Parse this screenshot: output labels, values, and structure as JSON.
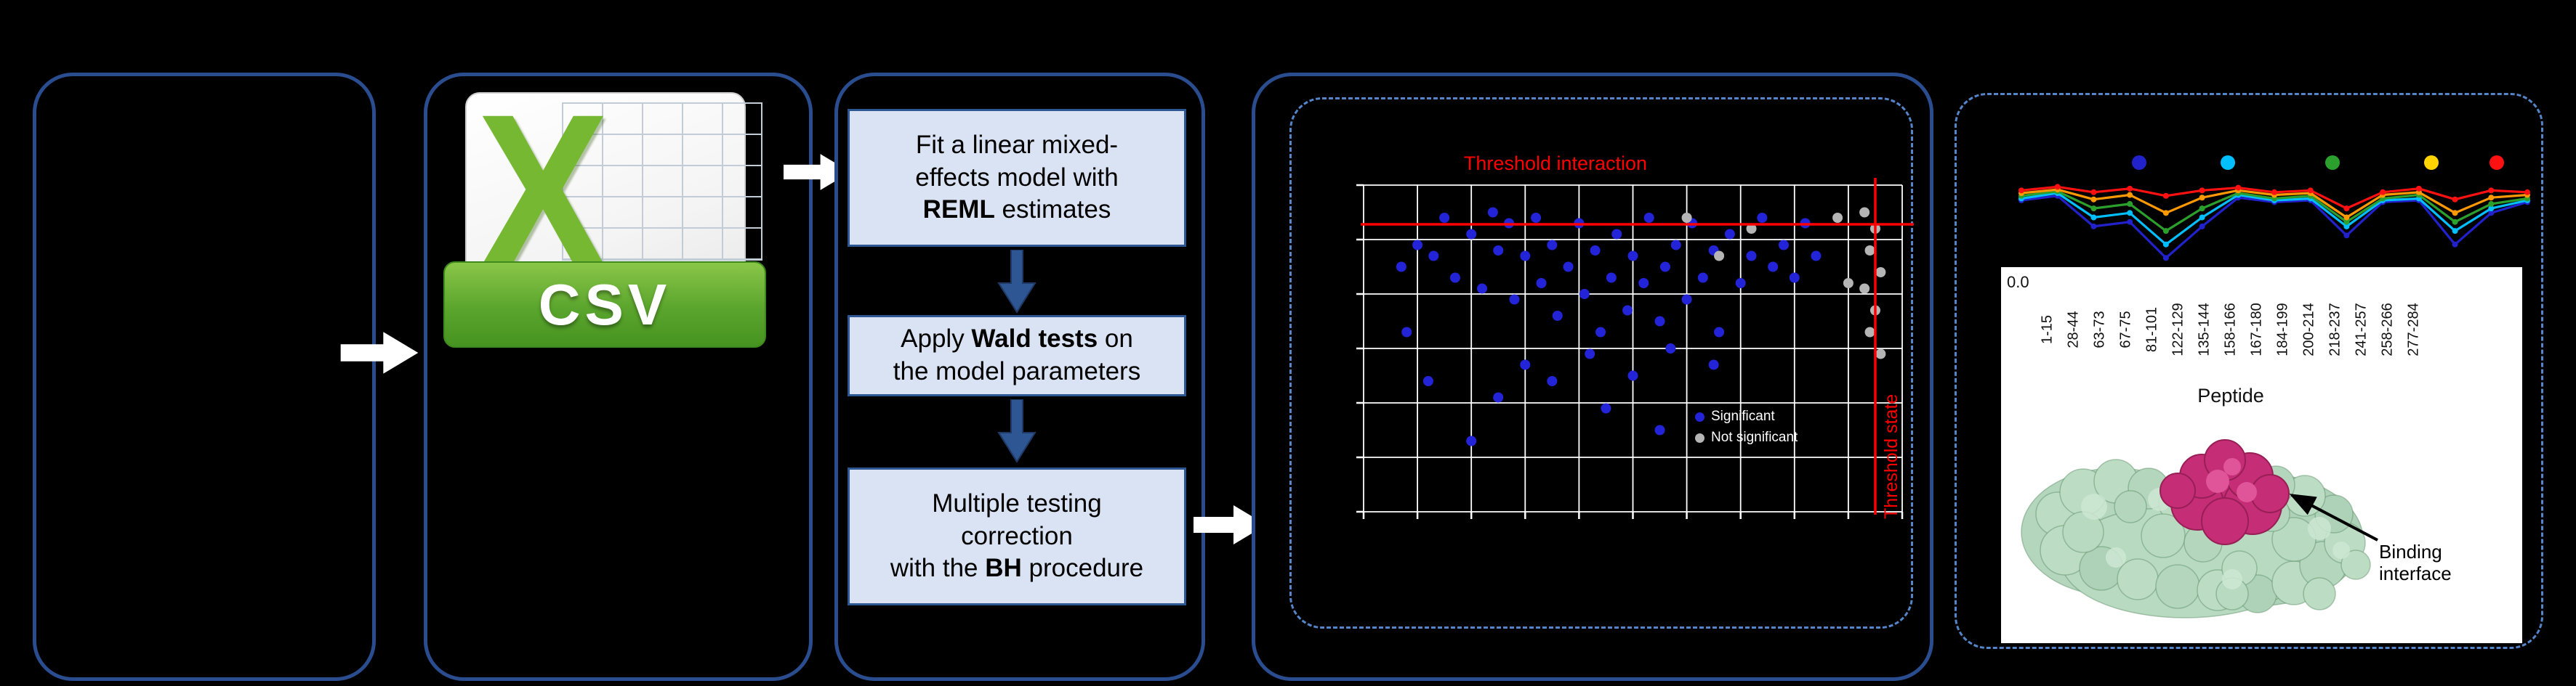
{
  "figure": {
    "background": "#000000",
    "panel_border_color": "#2a4d8f",
    "dashed_border_color": "#5585c9",
    "step_box_fill": "#dae3f3",
    "step_box_border": "#2e5693"
  },
  "panel_csv": {
    "file_type_label": "CSV",
    "excel_letter": "X"
  },
  "panel_steps": {
    "steps": [
      {
        "pre": "Fit a linear mixed-\neffects model with\n",
        "bold": "REML",
        "post": " estimates"
      },
      {
        "pre": "Apply ",
        "bold": "Wald tests",
        "post": " on\nthe model parameters"
      },
      {
        "pre": "Multiple testing\ncorrection\nwith the ",
        "bold": "BH",
        "post": " procedure"
      }
    ]
  },
  "panel_results": {
    "y_tick": "0.0",
    "x_axis_title": "Peptide",
    "binding_label": "Binding\ninterface"
  },
  "chart_data": [
    {
      "id": "pvalue-scatter",
      "type": "scatter",
      "x_range": [
        0,
        10
      ],
      "y_range": [
        0,
        6
      ],
      "grid_step_x": 1,
      "grid_step_y": 1,
      "grid": true,
      "grid_color": "#ffffff",
      "threshold_color": "#ff0000",
      "threshold_h_label": "Threshold interaction",
      "threshold_v_label": "Threshold state",
      "threshold_h_y": 5.28,
      "threshold_v_x": 9.5,
      "series": [
        {
          "name": "significant",
          "color": "#2323d7",
          "points": [
            [
              0.7,
              4.5
            ],
            [
              1.0,
              4.9
            ],
            [
              1.3,
              4.7
            ],
            [
              1.5,
              5.4
            ],
            [
              1.7,
              4.3
            ],
            [
              2.0,
              5.1
            ],
            [
              2.2,
              4.1
            ],
            [
              2.4,
              5.5
            ],
            [
              2.5,
              4.8
            ],
            [
              2.7,
              5.3
            ],
            [
              2.8,
              3.9
            ],
            [
              3.0,
              4.7
            ],
            [
              3.2,
              5.4
            ],
            [
              3.3,
              4.2
            ],
            [
              3.5,
              4.9
            ],
            [
              3.6,
              3.6
            ],
            [
              3.8,
              4.5
            ],
            [
              4.0,
              5.3
            ],
            [
              4.1,
              4.0
            ],
            [
              4.3,
              4.8
            ],
            [
              4.4,
              3.3
            ],
            [
              4.6,
              4.3
            ],
            [
              4.7,
              5.1
            ],
            [
              4.9,
              3.7
            ],
            [
              5.0,
              4.7
            ],
            [
              5.2,
              4.2
            ],
            [
              5.3,
              5.4
            ],
            [
              5.5,
              3.5
            ],
            [
              5.6,
              4.5
            ],
            [
              5.8,
              4.9
            ],
            [
              6.0,
              3.9
            ],
            [
              6.1,
              5.3
            ],
            [
              6.3,
              4.3
            ],
            [
              6.5,
              4.8
            ],
            [
              6.6,
              3.3
            ],
            [
              6.8,
              5.1
            ],
            [
              7.0,
              4.2
            ],
            [
              7.2,
              4.7
            ],
            [
              7.4,
              5.4
            ],
            [
              7.6,
              4.5
            ],
            [
              7.8,
              4.9
            ],
            [
              8.0,
              4.3
            ],
            [
              8.2,
              5.3
            ],
            [
              8.4,
              4.7
            ],
            [
              3.0,
              2.7
            ],
            [
              3.5,
              2.4
            ],
            [
              4.2,
              2.9
            ],
            [
              5.0,
              2.5
            ],
            [
              5.7,
              3.0
            ],
            [
              2.5,
              2.1
            ],
            [
              4.5,
              1.9
            ],
            [
              6.5,
              2.7
            ],
            [
              2.0,
              1.3
            ],
            [
              5.5,
              1.5
            ],
            [
              1.2,
              2.4
            ],
            [
              0.8,
              3.3
            ]
          ]
        },
        {
          "name": "not_significant",
          "color": "#b5b5b5",
          "points": [
            [
              9.3,
              5.5
            ],
            [
              9.5,
              5.2
            ],
            [
              9.4,
              4.8
            ],
            [
              9.6,
              4.4
            ],
            [
              9.3,
              4.1
            ],
            [
              9.5,
              3.7
            ],
            [
              9.4,
              3.3
            ],
            [
              9.6,
              2.9
            ],
            [
              7.2,
              5.2
            ],
            [
              6.0,
              5.4
            ],
            [
              6.6,
              4.7
            ],
            [
              8.8,
              5.4
            ],
            [
              9.0,
              4.2
            ]
          ]
        }
      ],
      "legend": [
        {
          "label": "Significant",
          "color": "#2323d7"
        },
        {
          "label": "Not significant",
          "color": "#b5b5b5"
        }
      ]
    },
    {
      "id": "uptake-lines",
      "type": "line",
      "categories": [
        "1-15",
        "28-44",
        "63-73",
        "67-75",
        "81-101",
        "122-129",
        "135-144",
        "158-166",
        "167-180",
        "184-199",
        "200-214",
        "218-237",
        "241-257",
        "258-266",
        "277-284"
      ],
      "series": [
        {
          "color": "#2222cc",
          "values": [
            0.71,
            0.76,
            0.42,
            0.47,
            0.07,
            0.42,
            0.74,
            0.69,
            0.71,
            0.32,
            0.69,
            0.71,
            0.22,
            0.57,
            0.69
          ]
        },
        {
          "color": "#00bfff",
          "values": [
            0.73,
            0.79,
            0.52,
            0.57,
            0.22,
            0.52,
            0.77,
            0.71,
            0.73,
            0.42,
            0.71,
            0.73,
            0.37,
            0.62,
            0.71
          ]
        },
        {
          "color": "#2ca02c",
          "values": [
            0.76,
            0.81,
            0.62,
            0.67,
            0.37,
            0.62,
            0.79,
            0.73,
            0.76,
            0.47,
            0.73,
            0.77,
            0.47,
            0.67,
            0.73
          ]
        },
        {
          "color": "#ff9900",
          "values": [
            0.79,
            0.83,
            0.72,
            0.77,
            0.57,
            0.74,
            0.82,
            0.77,
            0.79,
            0.52,
            0.77,
            0.8,
            0.57,
            0.74,
            0.77
          ]
        },
        {
          "color": "#ff1111",
          "values": [
            0.82,
            0.86,
            0.8,
            0.84,
            0.76,
            0.82,
            0.85,
            0.8,
            0.82,
            0.62,
            0.8,
            0.84,
            0.72,
            0.82,
            0.8
          ]
        }
      ],
      "legend_dot_colors": [
        "#2222cc",
        "#00bfff",
        "#2ca02c",
        "#ffd400",
        "#ff1111"
      ],
      "legend_dot_x": [
        174,
        296,
        440,
        576,
        666
      ]
    }
  ]
}
